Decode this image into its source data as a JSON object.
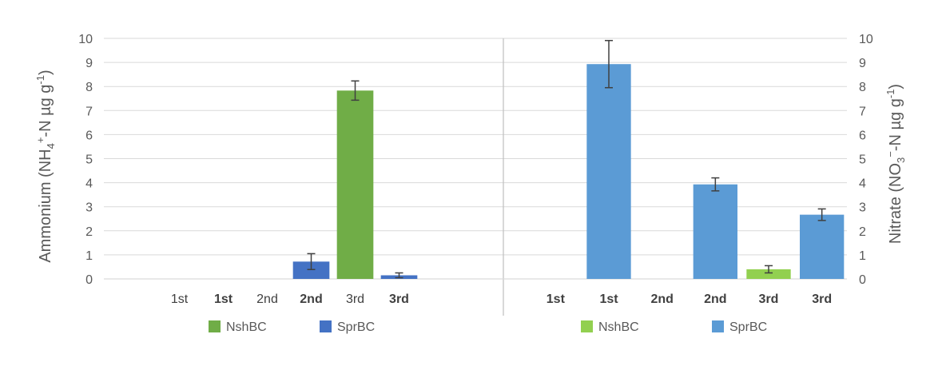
{
  "chart_data": {
    "type": "bar",
    "ylim": [
      0,
      10
    ],
    "yticks": [
      "0",
      "1",
      "2",
      "3",
      "4",
      "5",
      "6",
      "7",
      "8",
      "9",
      "10"
    ],
    "grid": true,
    "left_axis_title": {
      "prefix": "Ammonium (NH",
      "sub": "4",
      "sup": "+",
      "mid": "-N µg g",
      "sup2": "-1",
      "suffix": ")"
    },
    "right_axis_title": {
      "prefix": "Nitrate (NO",
      "sub": "3",
      "sup": "−",
      "mid": "-N µg g",
      "sup2": "-1",
      "suffix": ")"
    },
    "panels": [
      {
        "measure": "Ammonium",
        "categories": [
          "1st",
          "1st",
          "2nd",
          "2nd",
          "3rd",
          "3rd"
        ],
        "bold": [
          false,
          true,
          false,
          true,
          false,
          true
        ],
        "series": [
          {
            "name": "NshBC",
            "color": "#70ad47",
            "values": [
              0,
              null,
              0,
              null,
              7.83,
              null
            ],
            "errors": [
              0,
              null,
              0,
              null,
              0.4,
              null
            ]
          },
          {
            "name": "SprBC",
            "color": "#4472c4",
            "values": [
              null,
              0,
              null,
              0.72,
              null,
              0.15
            ],
            "errors": [
              null,
              0,
              null,
              0.33,
              null,
              0.1
            ]
          }
        ],
        "legend": [
          "NshBC",
          "SprBC"
        ]
      },
      {
        "measure": "Nitrate",
        "categories": [
          "1st",
          "1st",
          "2nd",
          "2nd",
          "3rd",
          "3rd"
        ],
        "bold": [
          true,
          true,
          true,
          true,
          true,
          true
        ],
        "series": [
          {
            "name": "NshBC",
            "color": "#92d050",
            "values": [
              0,
              null,
              0,
              null,
              0.4,
              null
            ],
            "errors": [
              0,
              null,
              0,
              null,
              0.15,
              null
            ]
          },
          {
            "name": "SprBC",
            "color": "#5b9bd5",
            "values": [
              null,
              8.93,
              null,
              3.93,
              null,
              2.67
            ],
            "errors": [
              null,
              0.98,
              null,
              0.27,
              null,
              0.24
            ]
          }
        ],
        "legend": [
          "NshBC",
          "SprBC"
        ]
      }
    ]
  }
}
